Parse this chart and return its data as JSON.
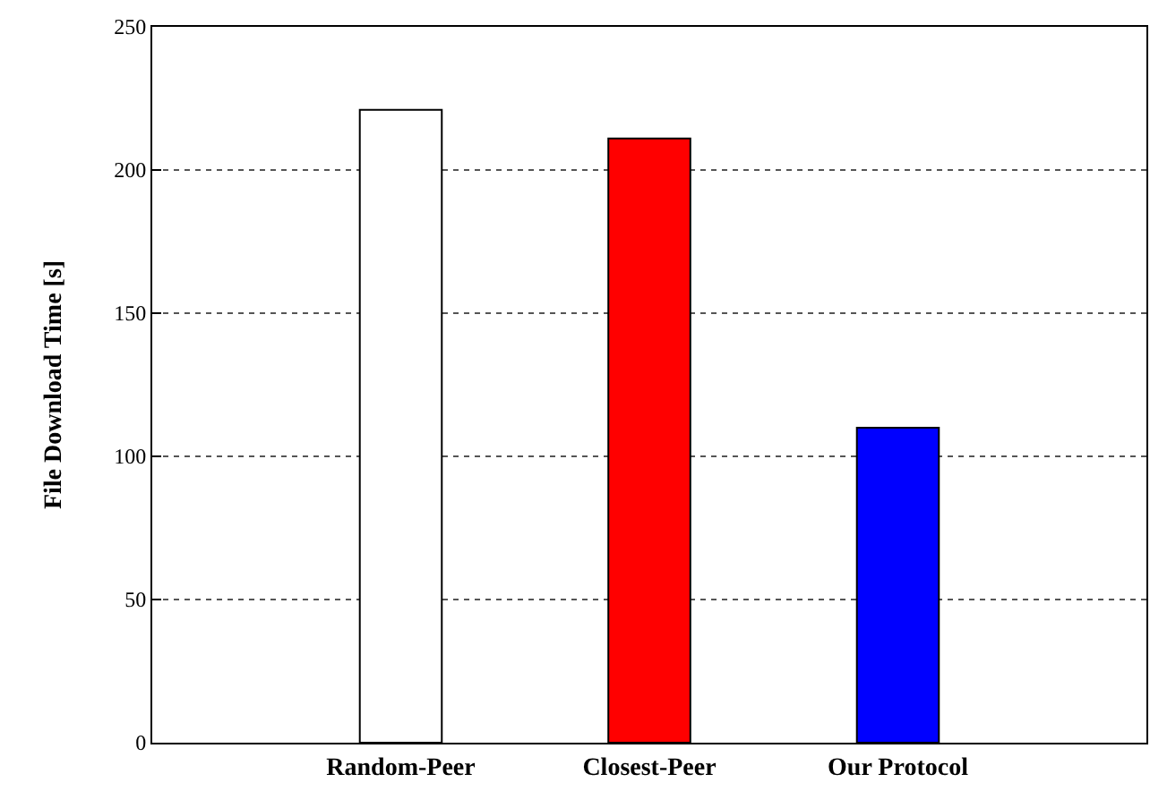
{
  "chart_data": {
    "type": "bar",
    "ylabel": "File Download Time [s]",
    "categories": [
      "Random-Peer",
      "Closest-Peer",
      "Our Protocol"
    ],
    "values": [
      221,
      211,
      110
    ],
    "colors": [
      "#ffffff",
      "#ff0000",
      "#0000ff"
    ],
    "ylim": [
      0,
      250
    ],
    "yticks": [
      0,
      50,
      100,
      150,
      200,
      250
    ],
    "grid": "y"
  }
}
